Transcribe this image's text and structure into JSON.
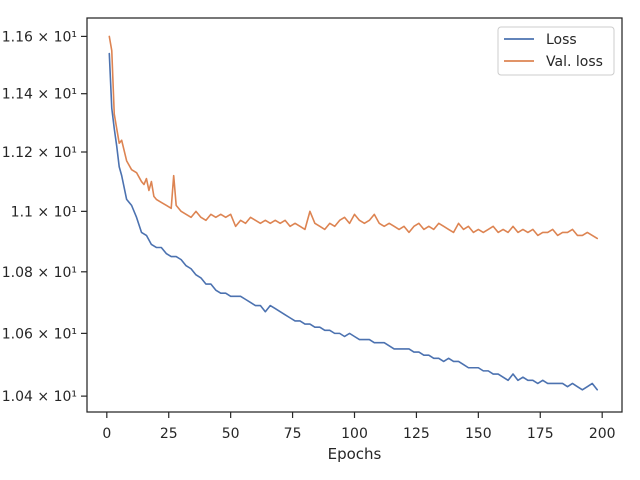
{
  "chart_data": {
    "type": "line",
    "title": "",
    "xlabel": "Epochs",
    "ylabel": "",
    "xlim": [
      -8,
      208
    ],
    "ylim": [
      10.35,
      11.665
    ],
    "xticks": [
      0,
      25,
      50,
      75,
      100,
      125,
      150,
      175,
      200
    ],
    "xtick_labels": [
      "0",
      "25",
      "50",
      "75",
      "100",
      "125",
      "150",
      "175",
      "200"
    ],
    "yticks": [
      10.4,
      10.6,
      10.8,
      11.0,
      11.2,
      11.4,
      11.6
    ],
    "ytick_labels": [
      "1.04 × 10¹",
      "1.06 × 10¹",
      "1.08 × 10¹",
      "1.1 × 10¹",
      "1.12 × 10¹",
      "1.14 × 10¹",
      "1.16 × 10¹"
    ],
    "y_scale": "log",
    "grid": false,
    "legend": {
      "placement": "top-right"
    },
    "series": [
      {
        "name": "Loss",
        "color": "#4c72b0",
        "x": [
          1,
          2,
          3,
          4,
          5,
          6,
          8,
          10,
          12,
          14,
          16,
          18,
          20,
          22,
          24,
          26,
          28,
          30,
          32,
          34,
          36,
          38,
          40,
          42,
          44,
          46,
          48,
          50,
          52,
          54,
          56,
          58,
          60,
          62,
          64,
          66,
          68,
          70,
          72,
          74,
          76,
          78,
          80,
          82,
          84,
          86,
          88,
          90,
          92,
          94,
          96,
          98,
          100,
          102,
          104,
          106,
          108,
          110,
          112,
          114,
          116,
          118,
          120,
          122,
          124,
          126,
          128,
          130,
          132,
          134,
          136,
          138,
          140,
          142,
          144,
          146,
          148,
          150,
          152,
          154,
          156,
          158,
          160,
          162,
          164,
          166,
          168,
          170,
          172,
          174,
          176,
          178,
          180,
          182,
          184,
          186,
          188,
          190,
          192,
          194,
          196,
          198
        ],
        "values": [
          11.54,
          11.35,
          11.28,
          11.22,
          11.15,
          11.12,
          11.04,
          11.02,
          10.98,
          10.93,
          10.92,
          10.89,
          10.88,
          10.88,
          10.86,
          10.85,
          10.85,
          10.84,
          10.82,
          10.81,
          10.79,
          10.78,
          10.76,
          10.76,
          10.74,
          10.73,
          10.73,
          10.72,
          10.72,
          10.72,
          10.71,
          10.7,
          10.69,
          10.69,
          10.67,
          10.69,
          10.68,
          10.67,
          10.66,
          10.65,
          10.64,
          10.64,
          10.63,
          10.63,
          10.62,
          10.62,
          10.61,
          10.61,
          10.6,
          10.6,
          10.59,
          10.6,
          10.59,
          10.58,
          10.58,
          10.58,
          10.57,
          10.57,
          10.57,
          10.56,
          10.55,
          10.55,
          10.55,
          10.55,
          10.54,
          10.54,
          10.53,
          10.53,
          10.52,
          10.52,
          10.51,
          10.52,
          10.51,
          10.51,
          10.5,
          10.49,
          10.49,
          10.49,
          10.48,
          10.48,
          10.47,
          10.47,
          10.46,
          10.45,
          10.47,
          10.45,
          10.46,
          10.45,
          10.45,
          10.44,
          10.45,
          10.44,
          10.44,
          10.44,
          10.44,
          10.43,
          10.44,
          10.43,
          10.42,
          10.43,
          10.44,
          10.42
        ]
      },
      {
        "name": "Val. loss",
        "color": "#dd8452",
        "x": [
          1,
          2,
          3,
          4,
          5,
          6,
          8,
          10,
          12,
          14,
          15,
          16,
          17,
          18,
          19,
          20,
          22,
          24,
          26,
          27,
          28,
          30,
          32,
          34,
          36,
          38,
          40,
          42,
          44,
          46,
          48,
          50,
          52,
          54,
          56,
          58,
          60,
          62,
          64,
          66,
          68,
          70,
          72,
          74,
          76,
          78,
          80,
          82,
          84,
          86,
          88,
          90,
          92,
          94,
          96,
          98,
          100,
          102,
          104,
          106,
          108,
          110,
          112,
          114,
          116,
          118,
          120,
          122,
          124,
          126,
          128,
          130,
          132,
          134,
          136,
          138,
          140,
          142,
          144,
          146,
          148,
          150,
          152,
          154,
          156,
          158,
          160,
          162,
          164,
          166,
          168,
          170,
          172,
          174,
          176,
          178,
          180,
          182,
          184,
          186,
          188,
          190,
          192,
          194,
          196,
          198
        ],
        "values": [
          11.6,
          11.55,
          11.33,
          11.28,
          11.23,
          11.24,
          11.17,
          11.14,
          11.13,
          11.1,
          11.09,
          11.11,
          11.07,
          11.1,
          11.05,
          11.04,
          11.03,
          11.02,
          11.01,
          11.12,
          11.02,
          11.0,
          10.99,
          10.98,
          11.0,
          10.98,
          10.97,
          10.99,
          10.98,
          10.99,
          10.98,
          10.99,
          10.95,
          10.97,
          10.96,
          10.98,
          10.97,
          10.96,
          10.97,
          10.96,
          10.97,
          10.96,
          10.97,
          10.95,
          10.96,
          10.95,
          10.94,
          11.0,
          10.96,
          10.95,
          10.94,
          10.96,
          10.95,
          10.97,
          10.98,
          10.96,
          10.99,
          10.97,
          10.96,
          10.97,
          10.99,
          10.96,
          10.95,
          10.96,
          10.95,
          10.94,
          10.95,
          10.93,
          10.95,
          10.96,
          10.94,
          10.95,
          10.94,
          10.96,
          10.95,
          10.94,
          10.93,
          10.96,
          10.94,
          10.95,
          10.93,
          10.94,
          10.93,
          10.94,
          10.95,
          10.93,
          10.94,
          10.93,
          10.95,
          10.93,
          10.94,
          10.93,
          10.94,
          10.92,
          10.93,
          10.93,
          10.94,
          10.92,
          10.93,
          10.93,
          10.94,
          10.92,
          10.92,
          10.93,
          10.92,
          10.91
        ]
      }
    ]
  }
}
